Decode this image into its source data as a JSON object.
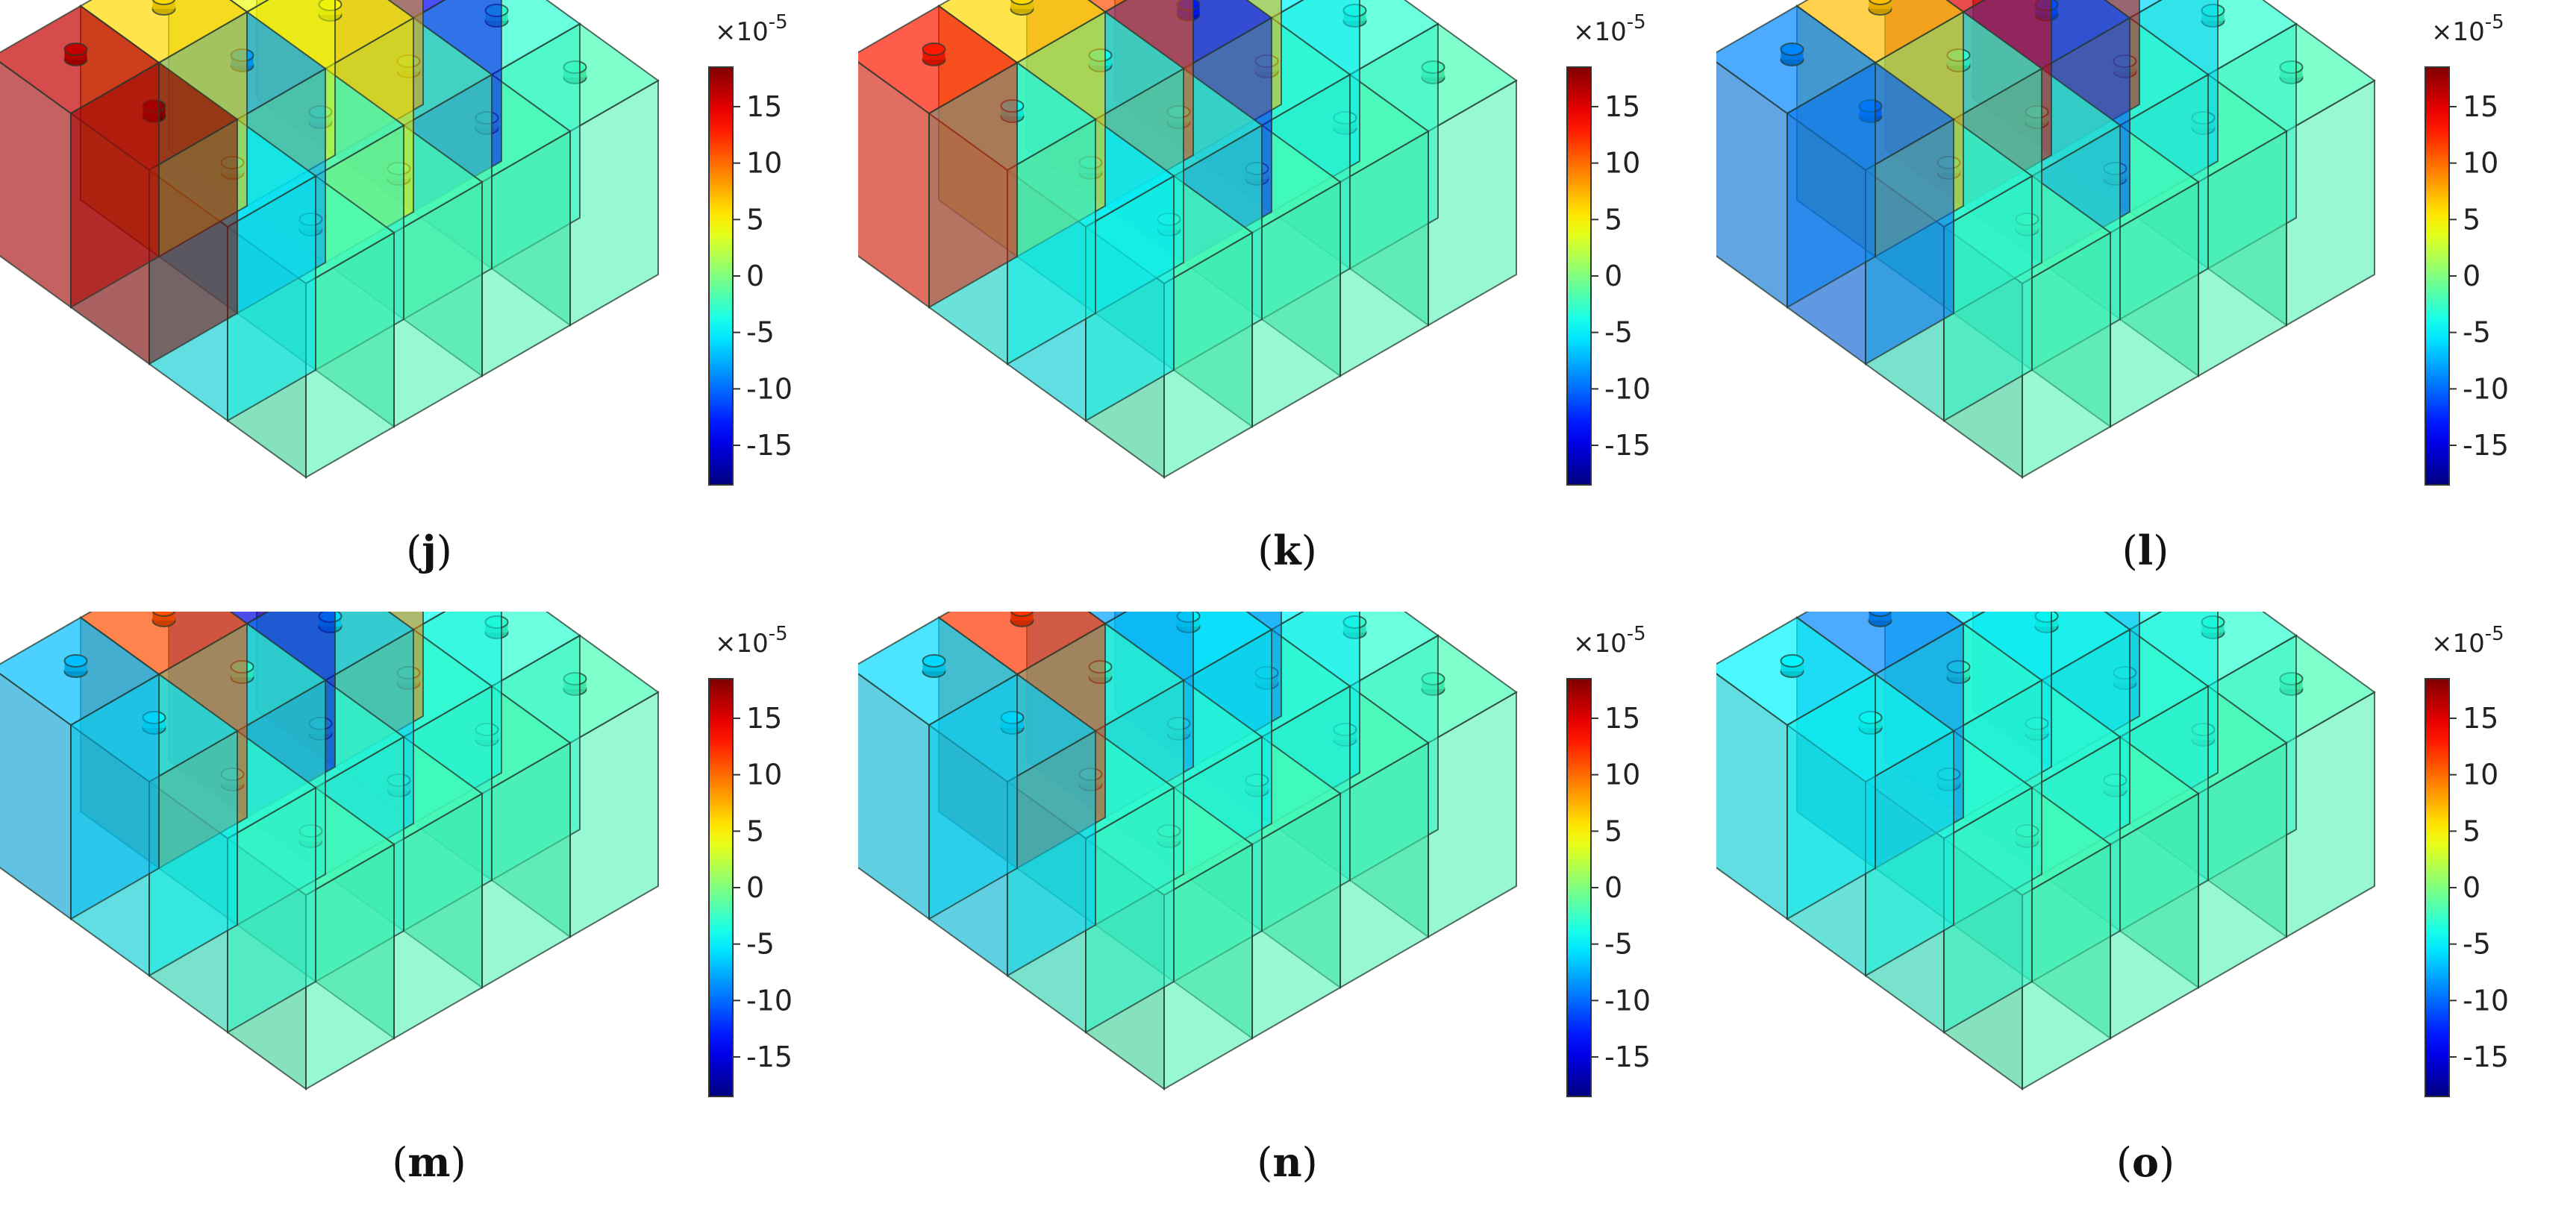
{
  "colorbar": {
    "exponent_base": "×10",
    "exponent_power": "-5",
    "ticks": [
      "15",
      "10",
      "5",
      "0",
      "-5",
      "-10",
      "-15"
    ],
    "tick_values": [
      15,
      10,
      5,
      0,
      -5,
      -10,
      -15
    ],
    "range": [
      -18.5,
      18.5
    ],
    "colormap": "jet"
  },
  "panels": [
    {
      "id": "j",
      "caption_open": "(",
      "caption_letter": "j",
      "caption_close": ")",
      "cells": [
        [
          16,
          6,
          4,
          8
        ],
        [
          18,
          -8,
          5,
          -14
        ],
        [
          -5,
          -3,
          -2,
          -3
        ],
        [
          -2,
          -2,
          -2,
          -2
        ]
      ]
    },
    {
      "id": "k",
      "caption_open": "(",
      "caption_letter": "k",
      "caption_close": ")",
      "cells": [
        [
          13,
          6,
          11,
          7
        ],
        [
          -4,
          -4,
          -13,
          -5
        ],
        [
          -5,
          -3,
          -3,
          -3
        ],
        [
          -2,
          -2,
          -2,
          -2
        ]
      ]
    },
    {
      "id": "l",
      "caption_open": "(",
      "caption_letter": "l",
      "caption_close": ")",
      "cells": [
        [
          -9,
          7,
          15,
          15
        ],
        [
          -10,
          -3,
          -11,
          -6
        ],
        [
          -3,
          -3,
          -3,
          -3
        ],
        [
          -2,
          -2,
          -2,
          -2
        ]
      ]
    },
    {
      "id": "m",
      "caption_open": "(",
      "caption_letter": "m",
      "caption_close": ")",
      "cells": [
        [
          -7,
          11,
          -15,
          9
        ],
        [
          -5,
          -3,
          -6,
          -4
        ],
        [
          -3,
          -3,
          -3,
          -3
        ],
        [
          -2,
          -2,
          -2,
          -2
        ]
      ]
    },
    {
      "id": "n",
      "caption_open": "(",
      "caption_letter": "n",
      "caption_close": ")",
      "cells": [
        [
          -6,
          12,
          -8,
          -9
        ],
        [
          -6,
          -3,
          -5,
          -5
        ],
        [
          -3,
          -3,
          -3,
          -3
        ],
        [
          -2,
          -2,
          -2,
          -2
        ]
      ]
    },
    {
      "id": "o",
      "caption_open": "(",
      "caption_letter": "o",
      "caption_close": ")",
      "cells": [
        [
          -5,
          -9,
          -5,
          -7
        ],
        [
          -4,
          -3,
          -4,
          -4
        ],
        [
          -3,
          -3,
          -3,
          -3
        ],
        [
          -2,
          -2,
          -2,
          -2
        ]
      ]
    }
  ]
}
